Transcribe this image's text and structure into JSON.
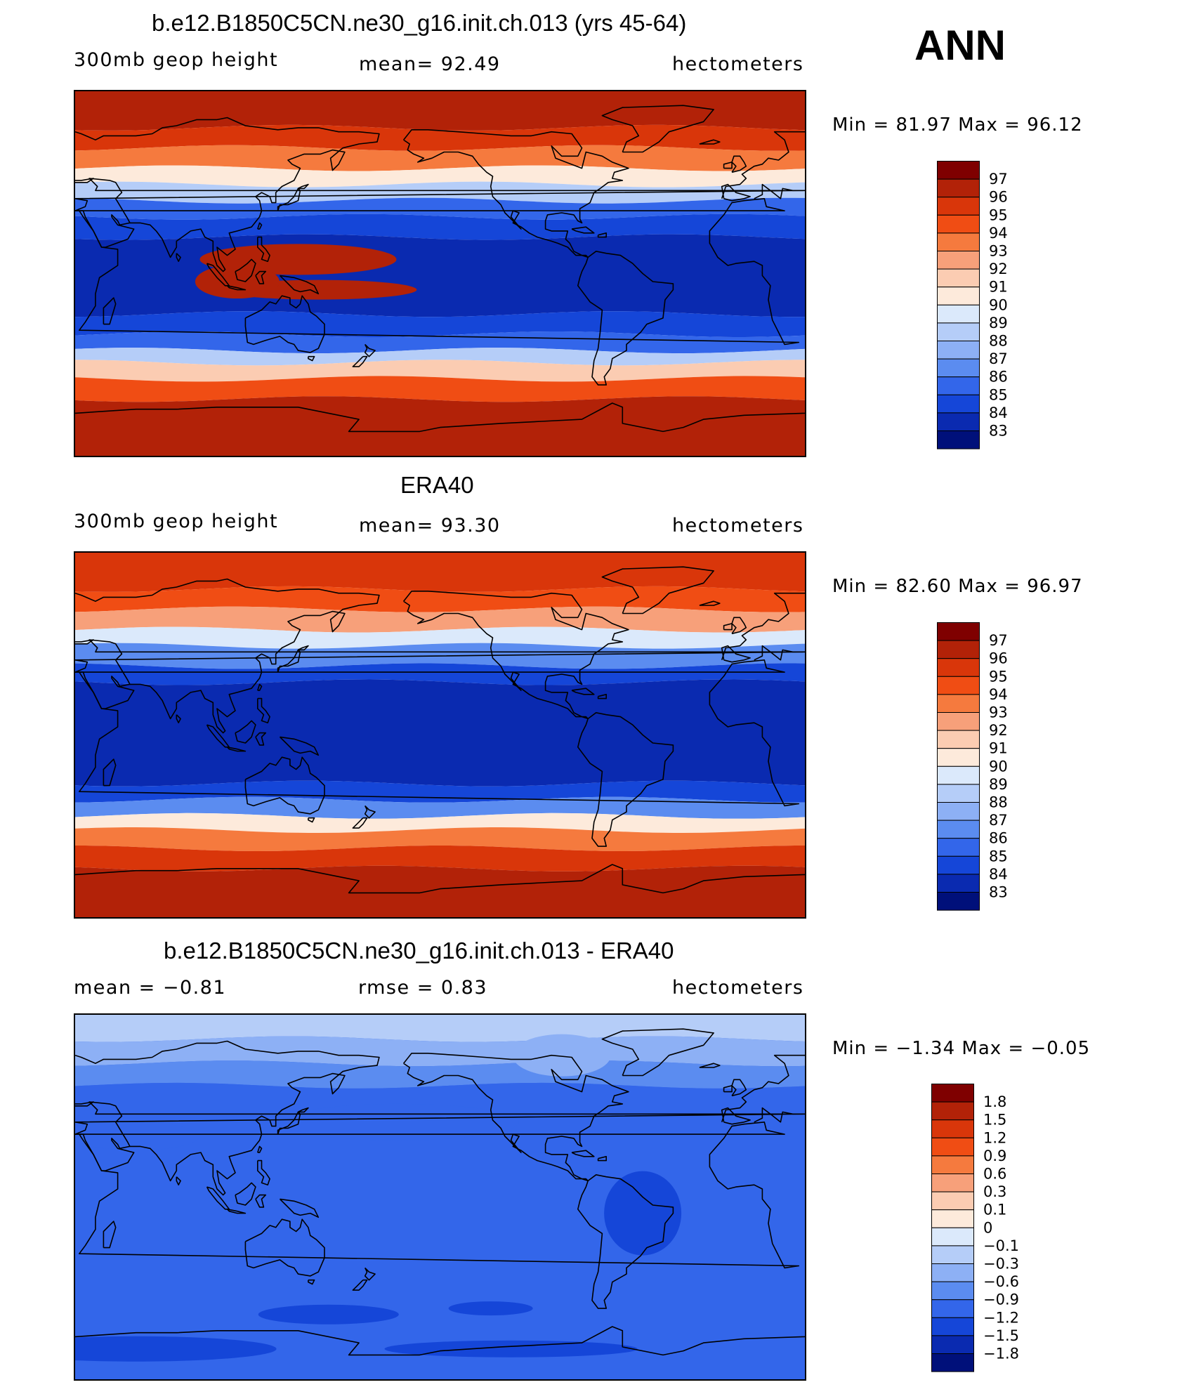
{
  "season": "ANN",
  "panels": [
    {
      "title": "b.e12.B1850C5CN.ne30_g16.init.ch.013 (yrs 45-64)",
      "left_label": "300mb  geop  height",
      "center_label": "mean=   92.49",
      "right_label": "hectometers",
      "minmax": "Min =   81.97  Max =   96.12",
      "legend": {
        "labels": [
          "97",
          "96",
          "95",
          "94",
          "93",
          "92",
          "91",
          "90",
          "89",
          "88",
          "87",
          "86",
          "85",
          "84",
          "83"
        ],
        "colors": [
          "#7f0000",
          "#b22208",
          "#d9360a",
          "#f04d14",
          "#f57a3e",
          "#f7a07a",
          "#fbccb2",
          "#fdeadb",
          "#dbe9fb",
          "#b5cdf8",
          "#8db0f5",
          "#5b8cf0",
          "#3366ea",
          "#1546d8",
          "#0a2ab0",
          "#00107a"
        ]
      },
      "map": {
        "type": "zonal",
        "bands": [
          {
            "lat": 90,
            "level": 1
          },
          {
            "lat": 72,
            "level": 2
          },
          {
            "lat": 62,
            "level": 4
          },
          {
            "lat": 52,
            "level": 7
          },
          {
            "lat": 44,
            "level": 9
          },
          {
            "lat": 36,
            "level": 12
          },
          {
            "lat": 28,
            "level": 13
          },
          {
            "lat": 18,
            "level": 14
          },
          {
            "lat": -20,
            "level": 13
          },
          {
            "lat": -30,
            "level": 12
          },
          {
            "lat": -38,
            "level": 9
          },
          {
            "lat": -44,
            "level": 6
          },
          {
            "lat": -52,
            "level": 3
          },
          {
            "lat": -62,
            "level": 1
          },
          {
            "lat": -90,
            "level": 0
          }
        ]
      }
    },
    {
      "title": "ERA40",
      "left_label": "300mb  geop  height",
      "center_label": "mean=   93.30",
      "right_label": "hectometers",
      "minmax": "Min =   82.60  Max =   96.97",
      "legend": {
        "labels": [
          "97",
          "96",
          "95",
          "94",
          "93",
          "92",
          "91",
          "90",
          "89",
          "88",
          "87",
          "86",
          "85",
          "84",
          "83"
        ],
        "colors": [
          "#7f0000",
          "#b22208",
          "#d9360a",
          "#f04d14",
          "#f57a3e",
          "#f7a07a",
          "#fbccb2",
          "#fdeadb",
          "#dbe9fb",
          "#b5cdf8",
          "#8db0f5",
          "#5b8cf0",
          "#3366ea",
          "#1546d8",
          "#0a2ab0",
          "#00107a"
        ]
      },
      "map": {
        "type": "zonal",
        "bands": [
          {
            "lat": 90,
            "level": 2
          },
          {
            "lat": 72,
            "level": 3
          },
          {
            "lat": 62,
            "level": 5
          },
          {
            "lat": 52,
            "level": 8
          },
          {
            "lat": 44,
            "level": 11
          },
          {
            "lat": 34,
            "level": 13
          },
          {
            "lat": 26,
            "level": 14
          },
          {
            "lat": -24,
            "level": 13
          },
          {
            "lat": -32,
            "level": 11
          },
          {
            "lat": -40,
            "level": 7
          },
          {
            "lat": -47,
            "level": 4
          },
          {
            "lat": -56,
            "level": 2
          },
          {
            "lat": -66,
            "level": 1
          },
          {
            "lat": -90,
            "level": 0
          }
        ]
      }
    },
    {
      "title": "b.e12.B1850C5CN.ne30_g16.init.ch.013 - ERA40",
      "left_label": "mean =   −0.81",
      "center_label": "rmse =    0.83",
      "right_label": "hectometers",
      "minmax": "Min =   −1.34  Max =   −0.05",
      "legend": {
        "labels": [
          "1.8",
          "1.5",
          "1.2",
          "0.9",
          "0.6",
          "0.3",
          "0.1",
          "0",
          "−0.1",
          "−0.3",
          "−0.6",
          "−0.9",
          "−1.2",
          "−1.5",
          "−1.8"
        ],
        "colors": [
          "#7f0000",
          "#b22208",
          "#d9360a",
          "#f04d14",
          "#f57a3e",
          "#f7a07a",
          "#fbccb2",
          "#fdeadb",
          "#dbe9fb",
          "#b5cdf8",
          "#8db0f5",
          "#5b8cf0",
          "#3366ea",
          "#1546d8",
          "#0a2ab0",
          "#00107a"
        ]
      },
      "map": {
        "type": "diff",
        "base_level": 12,
        "bands": [
          {
            "lat": 90,
            "level": 9
          },
          {
            "lat": 78,
            "level": 10
          },
          {
            "lat": 66,
            "level": 11
          },
          {
            "lat": 55,
            "level": 12
          },
          {
            "lat": -90,
            "level": 12
          }
        ]
      }
    }
  ]
}
